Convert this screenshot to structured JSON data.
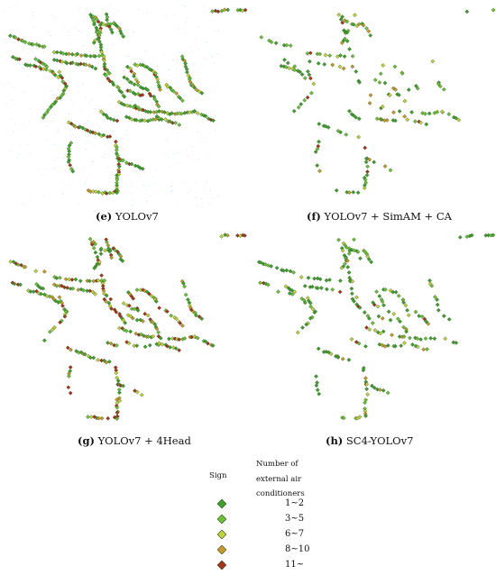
{
  "colors": {
    "class_1_2": "#3fa02e",
    "class_3_5": "#6cc03a",
    "class_6_7": "#c3d23c",
    "class_8_10": "#c89a2a",
    "class_11_plus": "#a8321e",
    "outline": "#2e4a22"
  },
  "panels": [
    {
      "letter": "(e)",
      "name": "YOLOv7",
      "variant": "e"
    },
    {
      "letter": "(f)",
      "name": "YOLOv7 + SimAM + CA",
      "variant": "f"
    },
    {
      "letter": "(g)",
      "name": "YOLOv7 + 4Head",
      "variant": "g"
    },
    {
      "letter": "(h)",
      "name": "SC4-YOLOv7",
      "variant": "h"
    }
  ],
  "legend": {
    "sign_header": "Sign",
    "title_lines": [
      "Number of",
      "external air",
      "conditioners"
    ],
    "classes": [
      "1~2",
      "3~5",
      "6~7",
      "8~10",
      "11~"
    ]
  }
}
